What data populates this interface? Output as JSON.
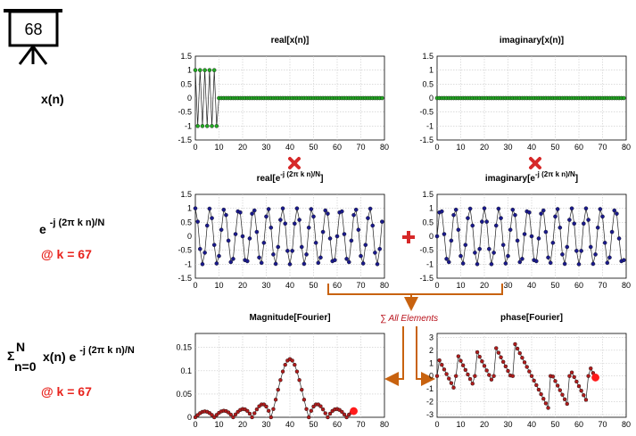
{
  "badge": {
    "number": "68"
  },
  "labels": {
    "xn": "x(n)",
    "exp_base": "e",
    "exp_sup": "-j (2π k n)/N",
    "at_k_1": "@ k = 67",
    "sigma": "Σ",
    "sigma_sup": "N",
    "sigma_sub": "n=0",
    "sum_expr": "x(n) e",
    "sum_sup": "-j (2π k n)/N",
    "at_k_2": "@ k = 67",
    "all_elements": "∑ All Elements"
  },
  "colors": {
    "green_marker": "#22a822",
    "blue_marker": "#1a1a8c",
    "red_marker": "#b01c1c",
    "highlight": "#ff1a1a",
    "arrow": "#c8620f",
    "operator": "#d62828"
  },
  "chart_data": [
    {
      "id": "real-xn",
      "type": "line",
      "title": "real[x(n)]",
      "N": 80,
      "k": 67,
      "signal": "real_x",
      "xlim": [
        0,
        80
      ],
      "ylim": [
        -1.5,
        1.5
      ],
      "xticks": [
        "0",
        "10",
        "20",
        "30",
        "40",
        "50",
        "60",
        "70",
        "80"
      ],
      "yticks": [
        "1.5",
        "1",
        "0.5",
        "0",
        "-0.5",
        "-1",
        "-1.5"
      ],
      "grid": true,
      "marker_color": "#22a822"
    },
    {
      "id": "imag-xn",
      "type": "line",
      "title": "imaginary[x(n)]",
      "N": 80,
      "k": 67,
      "signal": "imag_x",
      "xlim": [
        0,
        80
      ],
      "ylim": [
        -1.5,
        1.5
      ],
      "xticks": [
        "0",
        "10",
        "20",
        "30",
        "40",
        "50",
        "60",
        "70",
        "80"
      ],
      "yticks": [
        "1.5",
        "1",
        "0.5",
        "0",
        "-0.5",
        "-1",
        "-1.5"
      ],
      "grid": true,
      "marker_color": "#22a822"
    },
    {
      "id": "real-exp",
      "type": "line",
      "title": "real[e",
      "title_sup": "-j (2π k n)/N",
      "title_end": "]",
      "N": 80,
      "k": 67,
      "signal": "real_e",
      "xlim": [
        0,
        80
      ],
      "ylim": [
        -1.5,
        1.5
      ],
      "xticks": [
        "0",
        "10",
        "20",
        "30",
        "40",
        "50",
        "60",
        "70",
        "80"
      ],
      "yticks": [
        "1.5",
        "1",
        "0.5",
        "0",
        "-0.5",
        "-1",
        "-1.5"
      ],
      "grid": true,
      "marker_color": "#1a1a8c"
    },
    {
      "id": "imag-exp",
      "type": "line",
      "title": "imaginary[e",
      "title_sup": "-j (2π k n)/N",
      "title_end": "]",
      "N": 80,
      "k": 67,
      "signal": "imag_e",
      "xlim": [
        0,
        80
      ],
      "ylim": [
        -1.5,
        1.5
      ],
      "xticks": [
        "0",
        "10",
        "20",
        "30",
        "40",
        "50",
        "60",
        "70",
        "80"
      ],
      "yticks": [
        "1.5",
        "1",
        "0.5",
        "0",
        "-0.5",
        "-1",
        "-1.5"
      ],
      "grid": true,
      "marker_color": "#1a1a8c"
    },
    {
      "id": "magnitude",
      "type": "line",
      "title": "Magnitude[Fourier]",
      "N": 80,
      "k": 67,
      "signal": "mag",
      "xlim": [
        0,
        80
      ],
      "ylim": [
        0,
        0.18
      ],
      "xticks": [
        "0",
        "10",
        "20",
        "30",
        "40",
        "50",
        "60",
        "70",
        "80"
      ],
      "yticks": [
        "0.15",
        "0.1",
        "0.05",
        "0"
      ],
      "grid": true,
      "marker_color": "#b01c1c",
      "highlight_index": 67
    },
    {
      "id": "phase",
      "type": "line",
      "title": "phase[Fourier]",
      "N": 80,
      "k": 67,
      "signal": "phase",
      "xlim": [
        0,
        80
      ],
      "ylim": [
        -3.2,
        3.3
      ],
      "xticks": [
        "0",
        "10",
        "20",
        "30",
        "40",
        "50",
        "60",
        "70",
        "80"
      ],
      "yticks": [
        "3",
        "2",
        "1",
        "0",
        "-1",
        "-2",
        "-3"
      ],
      "grid": true,
      "marker_color": "#b01c1c",
      "highlight_index": 67
    }
  ]
}
